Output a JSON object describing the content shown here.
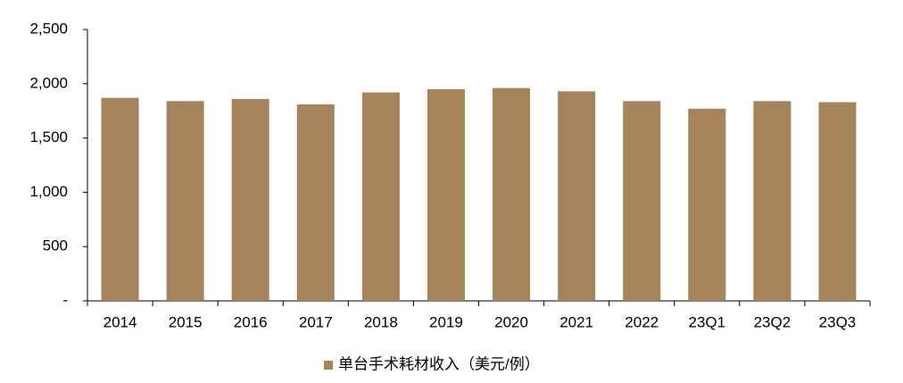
{
  "chart_data": {
    "type": "bar",
    "categories": [
      "2014",
      "2015",
      "2016",
      "2017",
      "2018",
      "2019",
      "2020",
      "2021",
      "2022",
      "23Q1",
      "23Q2",
      "23Q3"
    ],
    "series": [
      {
        "name": "单台手术耗材收入（美元/例）",
        "color": "#a5845c",
        "values": [
          1870,
          1840,
          1860,
          1810,
          1920,
          1950,
          1960,
          1930,
          1840,
          1770,
          1840,
          1830
        ]
      }
    ],
    "ylim": [
      0,
      2500
    ],
    "yticks": [
      {
        "value": 0,
        "label": "-"
      },
      500,
      {
        "value": 1000,
        "label": "1,000"
      },
      {
        "value": 1500,
        "label": "1,500"
      },
      {
        "value": 2000,
        "label": "2,000"
      },
      {
        "value": 2500,
        "label": "2,500"
      }
    ],
    "legend": "bottom"
  }
}
